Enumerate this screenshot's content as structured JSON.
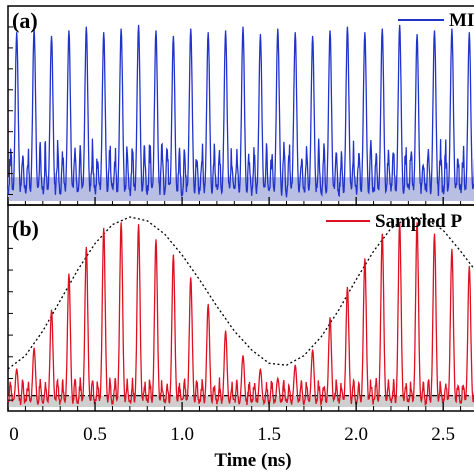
{
  "chart_data": [
    {
      "type": "line",
      "panel_label": "(a)",
      "legend": {
        "text": "MI",
        "color": "#2233cc",
        "placement": "top-right"
      },
      "series": [
        {
          "color": "#2233cc",
          "pulse_times_ns": [
            0.05,
            0.15,
            0.25,
            0.35,
            0.45,
            0.55,
            0.65,
            0.75,
            0.85,
            0.95,
            1.05,
            1.15,
            1.25,
            1.35,
            1.45,
            1.55,
            1.65,
            1.75,
            1.85,
            1.95,
            2.05,
            2.15,
            2.25,
            2.35,
            2.45,
            2.55,
            2.65
          ],
          "pulse_peaks": [
            0.92,
            0.94,
            0.9,
            0.93,
            0.95,
            0.92,
            0.94,
            0.96,
            0.93,
            0.9,
            0.94,
            0.92,
            0.93,
            0.95,
            0.91,
            0.94,
            0.92,
            0.9,
            0.93,
            0.95,
            0.92,
            0.94,
            0.96,
            0.91,
            0.93,
            0.94,
            0.92
          ],
          "noise_floor": 0.13
        }
      ],
      "shaded_band": [
        0,
        0.13
      ],
      "shaded_band_color": "#b8bfe3",
      "ylim": [
        0,
        1
      ],
      "grid": false
    },
    {
      "type": "line",
      "panel_label": "(b)",
      "legend": {
        "text": "Sampled P",
        "color": "#dd1122",
        "placement": "top-right"
      },
      "series": [
        {
          "color": "#dd1122",
          "pulse_times_ns": [
            0.05,
            0.15,
            0.25,
            0.35,
            0.45,
            0.55,
            0.65,
            0.75,
            0.85,
            0.95,
            1.05,
            1.15,
            1.25,
            1.35,
            1.45,
            1.55,
            1.65,
            1.75,
            1.85,
            1.95,
            2.05,
            2.15,
            2.25,
            2.35,
            2.45,
            2.55,
            2.65
          ],
          "pulse_peaks": [
            0.2,
            0.31,
            0.51,
            0.7,
            0.84,
            0.94,
            0.97,
            0.96,
            0.88,
            0.8,
            0.68,
            0.54,
            0.4,
            0.27,
            0.2,
            0.15,
            0.22,
            0.3,
            0.47,
            0.63,
            0.78,
            0.91,
            0.97,
            0.97,
            0.91,
            0.83,
            0.74
          ],
          "noise_floor": 0.06
        }
      ],
      "envelope": {
        "style": "dotted",
        "color": "#000000",
        "x": [
          0.0,
          0.1,
          0.2,
          0.3,
          0.4,
          0.5,
          0.6,
          0.7,
          0.8,
          0.9,
          1.0,
          1.1,
          1.2,
          1.3,
          1.4,
          1.5,
          1.6,
          1.7,
          1.8,
          1.9,
          2.0,
          2.1,
          2.2,
          2.3,
          2.4,
          2.5,
          2.6,
          2.7
        ],
        "y": [
          0.2,
          0.27,
          0.4,
          0.56,
          0.72,
          0.86,
          0.96,
          1.0,
          0.98,
          0.91,
          0.8,
          0.67,
          0.53,
          0.4,
          0.3,
          0.23,
          0.22,
          0.27,
          0.37,
          0.51,
          0.67,
          0.82,
          0.94,
          1.0,
          0.99,
          0.93,
          0.82,
          0.7
        ]
      },
      "shaded_band": [
        0,
        0.06
      ],
      "shaded_band_color": "#cfcfcf",
      "reference_line": {
        "y": 0.06,
        "style": "dashed",
        "color": "#000000"
      },
      "ylim": [
        0,
        1
      ],
      "grid": false
    }
  ],
  "x_axis": {
    "label": "Time (ns)",
    "xlim": [
      0,
      2.7
    ],
    "ticks": [
      0,
      0.5,
      1.0,
      1.5,
      2.0,
      2.5
    ],
    "tick_labels": [
      "0",
      "0.5",
      "1.0",
      "1.5",
      "2.0",
      "2.5"
    ]
  }
}
